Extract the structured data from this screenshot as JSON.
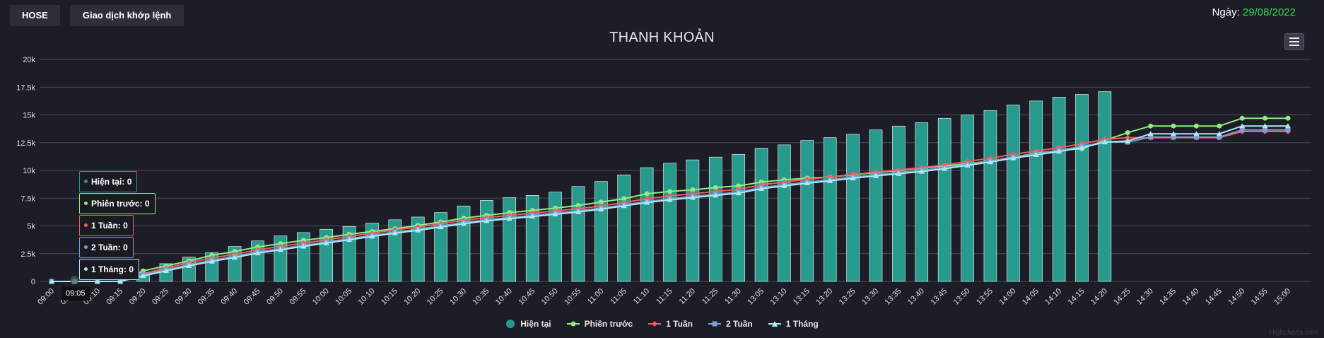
{
  "toolbar": {
    "exchange_label": "HOSE",
    "mode_label": "Giao dịch khớp lệnh"
  },
  "date": {
    "label": "Ngày:",
    "value": "29/08/2022"
  },
  "colors": {
    "current": "#279a8e",
    "previous": "#90ed7d",
    "week1": "#f45b5b",
    "week2": "#7c9fd6",
    "month1": "#aee8f4",
    "date_value": "#39d353"
  },
  "tooltip": {
    "x_label": "09:05",
    "entries": [
      {
        "label": "Hiện tại",
        "value": "0"
      },
      {
        "label": "Phiên trước",
        "value": "0"
      },
      {
        "label": "1 Tuần",
        "value": "0"
      },
      {
        "label": "2 Tuần",
        "value": "0"
      },
      {
        "label": "1 Tháng",
        "value": "0"
      }
    ]
  },
  "credit": "Highcharts.com",
  "chart_data": {
    "type": "bar",
    "title": "THANH KHOẢN",
    "x": [
      "09:00",
      "09:05",
      "09:10",
      "09:15",
      "09:20",
      "09:25",
      "09:30",
      "09:35",
      "09:40",
      "09:45",
      "09:50",
      "09:55",
      "10:00",
      "10:05",
      "10:10",
      "10:15",
      "10:20",
      "10:25",
      "10:30",
      "10:35",
      "10:40",
      "10:45",
      "10:50",
      "10:55",
      "11:00",
      "11:05",
      "11:10",
      "11:15",
      "11:20",
      "11:25",
      "11:30",
      "13:05",
      "13:10",
      "13:15",
      "13:20",
      "13:25",
      "13:30",
      "13:35",
      "13:40",
      "13:45",
      "13:50",
      "13:55",
      "14:00",
      "14:05",
      "14:10",
      "14:15",
      "14:20",
      "14:25",
      "14:30",
      "14:35",
      "14:40",
      "14:45",
      "14:50",
      "14:55",
      "15:00"
    ],
    "ylim": [
      0,
      20000
    ],
    "y_ticks": [
      0,
      2500,
      5000,
      7500,
      10000,
      12500,
      15000,
      17500,
      20000
    ],
    "y_tick_labels": [
      "0",
      "2.5k",
      "5k",
      "7.5k",
      "10k",
      "12.5k",
      "15k",
      "17.5k",
      "20k"
    ],
    "grid": true,
    "legend_position": "bottom-center",
    "series": [
      {
        "name": "Hiện tại",
        "kind": "column",
        "values": [
          0,
          0,
          0,
          0,
          800,
          1600,
          2200,
          2600,
          3150,
          3650,
          4100,
          4400,
          4700,
          4950,
          5250,
          5550,
          5800,
          6200,
          6800,
          7300,
          7550,
          7750,
          8050,
          8550,
          9000,
          9600,
          10250,
          10650,
          10950,
          11200,
          11450,
          12000,
          12300,
          12700,
          12950,
          13250,
          13650,
          14000,
          14300,
          14700,
          15000,
          15400,
          15900,
          16250,
          16600,
          16850,
          17100,
          null,
          null,
          null,
          null,
          null,
          null,
          null,
          null
        ]
      },
      {
        "name": "Phiên trước",
        "kind": "line",
        "values": [
          0,
          0,
          0,
          0,
          950,
          1400,
          1850,
          2350,
          2700,
          3100,
          3400,
          3700,
          3950,
          4250,
          4500,
          4750,
          5050,
          5350,
          5700,
          5950,
          6200,
          6400,
          6600,
          6850,
          7150,
          7450,
          7900,
          8100,
          8250,
          8450,
          8600,
          8950,
          9150,
          9300,
          9400,
          9600,
          9800,
          10000,
          10200,
          10400,
          10600,
          10850,
          11200,
          11550,
          11800,
          11950,
          12700,
          13400,
          14000,
          14000,
          14000,
          14000,
          14700,
          14700,
          14700
        ]
      },
      {
        "name": "1 Tuần",
        "kind": "line",
        "values": [
          0,
          0,
          0,
          0,
          700,
          1200,
          1700,
          2100,
          2450,
          2850,
          3150,
          3450,
          3750,
          4050,
          4350,
          4650,
          4900,
          5200,
          5500,
          5750,
          5950,
          6150,
          6350,
          6550,
          6800,
          7100,
          7450,
          7700,
          7900,
          8100,
          8300,
          8700,
          8950,
          9200,
          9400,
          9650,
          9850,
          10050,
          10250,
          10500,
          10800,
          11100,
          11450,
          11750,
          12050,
          12400,
          12800,
          12950,
          12950,
          12950,
          12950,
          12950,
          13500,
          13500,
          13500
        ]
      },
      {
        "name": "2 Tuần",
        "kind": "line",
        "values": [
          0,
          0,
          0,
          0,
          600,
          1050,
          1500,
          1900,
          2250,
          2650,
          2950,
          3250,
          3550,
          3850,
          4150,
          4450,
          4700,
          5000,
          5300,
          5550,
          5750,
          5950,
          6150,
          6350,
          6600,
          6900,
          7200,
          7450,
          7650,
          7850,
          8050,
          8450,
          8700,
          8950,
          9150,
          9400,
          9600,
          9800,
          10000,
          10250,
          10550,
          10850,
          11200,
          11500,
          11800,
          12150,
          12550,
          12550,
          13000,
          13000,
          13000,
          13000,
          13650,
          13650,
          13650
        ]
      },
      {
        "name": "1 Tháng",
        "kind": "line",
        "values": [
          0,
          0,
          0,
          0,
          500,
          950,
          1400,
          1800,
          2150,
          2550,
          2850,
          3150,
          3450,
          3750,
          4050,
          4350,
          4600,
          4900,
          5200,
          5450,
          5650,
          5850,
          6050,
          6250,
          6500,
          6800,
          7100,
          7350,
          7550,
          7750,
          7950,
          8350,
          8600,
          8850,
          9050,
          9300,
          9500,
          9700,
          9900,
          10150,
          10450,
          10750,
          11100,
          11400,
          11700,
          12050,
          12550,
          12650,
          13300,
          13300,
          13300,
          13300,
          14000,
          14000,
          14000
        ]
      }
    ]
  }
}
